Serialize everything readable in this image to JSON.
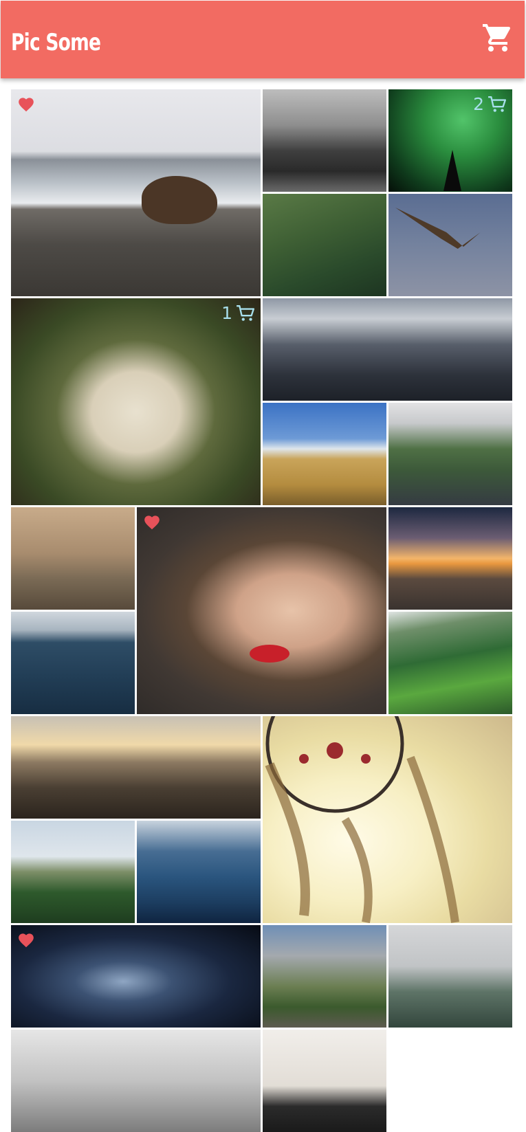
{
  "header": {
    "title": "Pic Some",
    "cart_icon": "cart-icon",
    "background": "#f26b62"
  },
  "colors": {
    "heart": "#e8525a",
    "cart_badge": "#a8dfec"
  },
  "gallery": {
    "photos": [
      {
        "id": "bear",
        "favorite": true,
        "cart_count": ""
      },
      {
        "id": "fog",
        "favorite": false,
        "cart_count": ""
      },
      {
        "id": "aurora",
        "favorite": false,
        "cart_count": "2"
      },
      {
        "id": "forest",
        "favorite": false,
        "cart_count": ""
      },
      {
        "id": "eagle",
        "favorite": false,
        "cart_count": ""
      },
      {
        "id": "pug",
        "favorite": false,
        "cart_count": "1"
      },
      {
        "id": "tower",
        "favorite": false,
        "cart_count": ""
      },
      {
        "id": "field",
        "favorite": false,
        "cart_count": ""
      },
      {
        "id": "city",
        "favorite": false,
        "cart_count": ""
      },
      {
        "id": "dead-trees",
        "favorite": false,
        "cart_count": ""
      },
      {
        "id": "face",
        "favorite": true,
        "cart_count": ""
      },
      {
        "id": "sunset",
        "favorite": false,
        "cart_count": ""
      },
      {
        "id": "sea",
        "favorite": false,
        "cart_count": ""
      },
      {
        "id": "waterfall",
        "favorite": false,
        "cart_count": ""
      },
      {
        "id": "valley",
        "favorite": false,
        "cart_count": ""
      },
      {
        "id": "dreamcatcher",
        "favorite": false,
        "cart_count": ""
      },
      {
        "id": "castle",
        "favorite": false,
        "cart_count": ""
      },
      {
        "id": "wave",
        "favorite": false,
        "cart_count": ""
      },
      {
        "id": "star-trails",
        "favorite": true,
        "cart_count": ""
      },
      {
        "id": "yosemite",
        "favorite": false,
        "cart_count": ""
      },
      {
        "id": "misty-mountain",
        "favorite": false,
        "cart_count": ""
      },
      {
        "id": "foggy-hills",
        "favorite": false,
        "cart_count": ""
      },
      {
        "id": "sea-rocks",
        "favorite": false,
        "cart_count": ""
      }
    ]
  }
}
